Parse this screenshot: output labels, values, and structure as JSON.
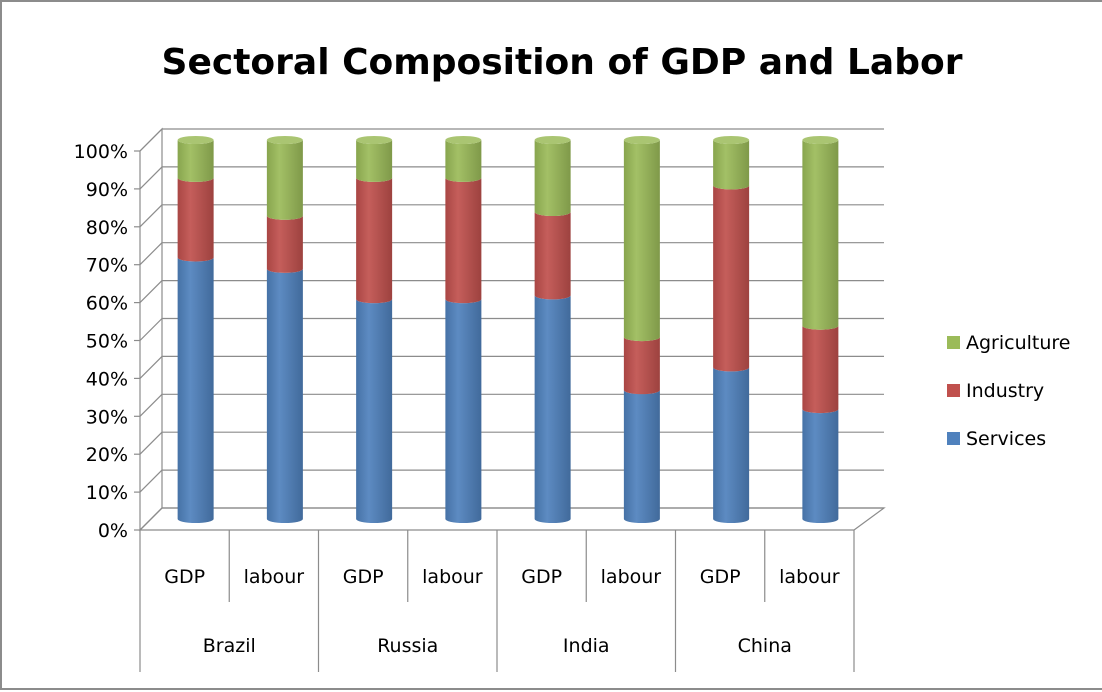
{
  "chart_data": {
    "type": "bar",
    "stacked": true,
    "three_d": true,
    "title": "Sectoral Composition of GDP and Labor",
    "xlabel": "",
    "ylabel": "",
    "ylim": [
      0,
      100
    ],
    "y_ticks": [
      "0%",
      "10%",
      "20%",
      "30%",
      "40%",
      "50%",
      "60%",
      "70%",
      "80%",
      "90%",
      "100%"
    ],
    "grid": true,
    "legend_position": "right",
    "groups": [
      "Brazil",
      "Russia",
      "India",
      "China"
    ],
    "categories": [
      "GDP",
      "labour",
      "GDP",
      "labour",
      "GDP",
      "labour",
      "GDP",
      "labour"
    ],
    "series": [
      {
        "name": "Services",
        "color": "#4f81bd",
        "values": [
          69,
          66,
          58,
          58,
          59,
          34,
          40,
          29
        ]
      },
      {
        "name": "Industry",
        "color": "#c0504d",
        "values": [
          21,
          14,
          32,
          32,
          22,
          14,
          48,
          22
        ]
      },
      {
        "name": "Agriculture",
        "color": "#9bbb59",
        "values": [
          10,
          20,
          10,
          10,
          19,
          52,
          12,
          49
        ]
      }
    ]
  }
}
